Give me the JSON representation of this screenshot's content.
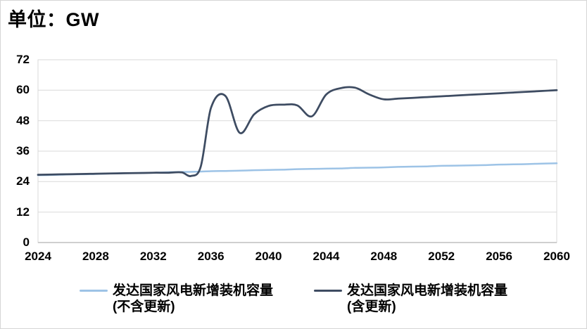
{
  "header": {
    "title": "单位：GW"
  },
  "colors": {
    "background": "#ffffff",
    "canvas_border": "#d6d6d6",
    "grid": "#d9d9d9",
    "axis": "#bfbfbf",
    "text": "#000000",
    "series_light_blue": "#9dc3e6",
    "series_dark_navy": "#3e4c62"
  },
  "chart_data": {
    "type": "line",
    "title": "单位：GW",
    "unit": "GW",
    "xlabel": "",
    "ylabel": "",
    "xlim": [
      2024,
      2060
    ],
    "ylim": [
      0,
      72
    ],
    "x_ticks": [
      2024,
      2028,
      2032,
      2036,
      2040,
      2044,
      2048,
      2052,
      2056,
      2060
    ],
    "y_ticks": [
      0,
      12,
      24,
      36,
      48,
      60,
      72
    ],
    "grid": "horizontal",
    "legend_position": "bottom",
    "series": [
      {
        "name": "发达国家风电新增装机容量(不含更新)",
        "color": "#9dc3e6",
        "stroke_width": 2.5,
        "x": [
          2024,
          2025,
          2026,
          2027,
          2028,
          2029,
          2030,
          2031,
          2032,
          2033,
          2034,
          2035,
          2036,
          2037,
          2038,
          2039,
          2040,
          2041,
          2042,
          2043,
          2044,
          2045,
          2046,
          2047,
          2048,
          2049,
          2050,
          2051,
          2052,
          2053,
          2054,
          2055,
          2056,
          2057,
          2058,
          2059,
          2060
        ],
        "values": [
          26.5,
          26.6,
          26.8,
          26.9,
          27.0,
          27.2,
          27.3,
          27.4,
          27.5,
          27.7,
          27.8,
          27.9,
          28.1,
          28.2,
          28.3,
          28.5,
          28.6,
          28.7,
          28.9,
          29.0,
          29.1,
          29.2,
          29.4,
          29.5,
          29.6,
          29.8,
          29.9,
          30.0,
          30.2,
          30.3,
          30.4,
          30.5,
          30.7,
          30.8,
          30.9,
          31.1,
          31.2
        ]
      },
      {
        "name": "发达国家风电新增装机容量(含更新)",
        "color": "#3e4c62",
        "stroke_width": 2.75,
        "x": [
          2024,
          2025,
          2026,
          2027,
          2028,
          2029,
          2030,
          2031,
          2032,
          2033,
          2034,
          2034.6,
          2035.3,
          2036,
          2037,
          2038,
          2039,
          2040,
          2041,
          2042,
          2043,
          2044,
          2045,
          2046,
          2047,
          2048,
          2049,
          2050,
          2051,
          2052,
          2053,
          2054,
          2055,
          2056,
          2057,
          2058,
          2059,
          2060
        ],
        "values": [
          26.7,
          26.8,
          26.9,
          27.0,
          27.1,
          27.2,
          27.3,
          27.4,
          27.5,
          27.5,
          27.6,
          26.2,
          30.0,
          53.0,
          57.8,
          43.2,
          50.5,
          53.8,
          54.3,
          54.0,
          49.7,
          58.3,
          60.8,
          61.0,
          58.3,
          56.4,
          56.7,
          57.0,
          57.3,
          57.6,
          57.9,
          58.2,
          58.5,
          58.8,
          59.1,
          59.4,
          59.7,
          60.0
        ]
      }
    ]
  },
  "legend": {
    "items": [
      {
        "line1": "发达国家风电新增装机容量",
        "line2": "(不含更新)",
        "color": "#9dc3e6"
      },
      {
        "line1": "发达国家风电新增装机容量",
        "line2": "(含更新)",
        "color": "#3e4c62"
      }
    ]
  }
}
